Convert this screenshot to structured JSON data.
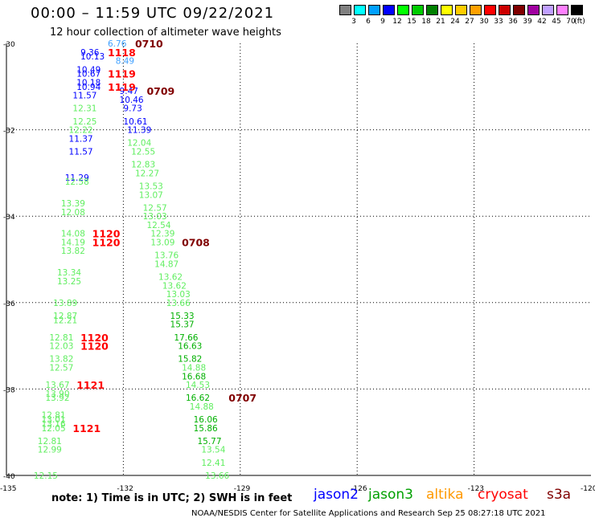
{
  "title": "00:00 – 11:59 UTC 09/22/2021",
  "subtitle": "12 hour collection of altimeter wave heights",
  "legend": {
    "colors": [
      "#808080",
      "#00ffff",
      "#00a0ff",
      "#0000ff",
      "#00ff00",
      "#00cc00",
      "#008000",
      "#ffff00",
      "#ffcc00",
      "#ffa000",
      "#ff0000",
      "#cc0000",
      "#800000",
      "#a000a0",
      "#c0a0ff",
      "#ff80ff",
      "#000000"
    ],
    "labels": [
      "3",
      "6",
      "9",
      "12",
      "15",
      "18",
      "21",
      "24",
      "27",
      "30",
      "33",
      "36",
      "39",
      "42",
      "45",
      "70",
      "(ft)"
    ]
  },
  "axes": {
    "lat_labels": [
      "-30",
      "-32",
      "-34",
      "-36",
      "-38",
      "-40"
    ],
    "lon_labels": [
      "-135",
      "-132",
      "-129",
      "-126",
      "-123",
      "-120"
    ]
  },
  "note": "note: 1) Time is in UTC; 2) SWH is in feet",
  "missions": [
    {
      "name": "jason2",
      "color": "#0000ff"
    },
    {
      "name": "jason3",
      "color": "#00a000"
    },
    {
      "name": "altika",
      "color": "#ff9900"
    },
    {
      "name": "cryosat",
      "color": "#ff0000"
    },
    {
      "name": "s3a",
      "color": "#800000"
    }
  ],
  "credit": "NOAA/NESDIS Center for Satellite Applications and Research    Sep 25 08:27:18 UTC 2021",
  "time_labels": [
    {
      "text": "0710",
      "color": "#800000",
      "lon": -131.7,
      "lat": -30.0
    },
    {
      "text": "0709",
      "color": "#800000",
      "lon": -131.4,
      "lat": -31.1
    },
    {
      "text": "0708",
      "color": "#800000",
      "lon": -130.5,
      "lat": -34.6
    },
    {
      "text": "0707",
      "color": "#800000",
      "lon": -129.3,
      "lat": -38.2
    },
    {
      "text": "1118",
      "color": "#ff0000",
      "lon": -132.4,
      "lat": -30.2
    },
    {
      "text": "1119",
      "color": "#ff0000",
      "lon": -132.4,
      "lat": -30.7
    },
    {
      "text": "1119",
      "color": "#ff0000",
      "lon": -132.4,
      "lat": -31.0
    },
    {
      "text": "1120",
      "color": "#ff0000",
      "lon": -132.8,
      "lat": -34.4
    },
    {
      "text": "1120",
      "color": "#ff0000",
      "lon": -132.8,
      "lat": -34.6
    },
    {
      "text": "1120",
      "color": "#ff0000",
      "lon": -133.1,
      "lat": -36.8
    },
    {
      "text": "1120",
      "color": "#ff0000",
      "lon": -133.1,
      "lat": -37.0
    },
    {
      "text": "1121",
      "color": "#ff0000",
      "lon": -133.2,
      "lat": -37.9
    },
    {
      "text": "1121",
      "color": "#ff0000",
      "lon": -133.3,
      "lat": -38.9
    }
  ],
  "points": [
    {
      "text": "6.76",
      "color": "#40a0ff",
      "lon": -132.4,
      "lat": -30.0
    },
    {
      "text": "9.36",
      "color": "#0000ff",
      "lon": -133.1,
      "lat": -30.2
    },
    {
      "text": "10.13",
      "color": "#0000ff",
      "lon": -133.1,
      "lat": -30.3
    },
    {
      "text": "8.49",
      "color": "#40a0ff",
      "lon": -132.2,
      "lat": -30.4
    },
    {
      "text": "10.49",
      "color": "#0000ff",
      "lon": -133.2,
      "lat": -30.6
    },
    {
      "text": "10.67",
      "color": "#0000ff",
      "lon": -133.2,
      "lat": -30.7
    },
    {
      "text": "10.18",
      "color": "#0000ff",
      "lon": -133.2,
      "lat": -30.9
    },
    {
      "text": "10.94",
      "color": "#0000ff",
      "lon": -133.2,
      "lat": -31.0
    },
    {
      "text": "9.47",
      "color": "#0000ff",
      "lon": -132.1,
      "lat": -31.1
    },
    {
      "text": "11.57",
      "color": "#0000ff",
      "lon": -133.3,
      "lat": -31.2
    },
    {
      "text": "10.46",
      "color": "#0000ff",
      "lon": -132.1,
      "lat": -31.3
    },
    {
      "text": "12.31",
      "color": "#60ee60",
      "lon": -133.3,
      "lat": -31.5
    },
    {
      "text": "9.73",
      "color": "#0000ff",
      "lon": -132.0,
      "lat": -31.5
    },
    {
      "text": "12.25",
      "color": "#60ee60",
      "lon": -133.3,
      "lat": -31.8
    },
    {
      "text": "10.61",
      "color": "#0000ff",
      "lon": -132.0,
      "lat": -31.8
    },
    {
      "text": "12.22",
      "color": "#60ee60",
      "lon": -133.4,
      "lat": -32.0
    },
    {
      "text": "11.39",
      "color": "#0000ff",
      "lon": -131.9,
      "lat": -32.0
    },
    {
      "text": "11.37",
      "color": "#0000ff",
      "lon": -133.4,
      "lat": -32.2
    },
    {
      "text": "12.04",
      "color": "#60ee60",
      "lon": -131.9,
      "lat": -32.3
    },
    {
      "text": "11.57",
      "color": "#0000ff",
      "lon": -133.4,
      "lat": -32.5
    },
    {
      "text": "12.55",
      "color": "#60ee60",
      "lon": -131.8,
      "lat": -32.5
    },
    {
      "text": "12.83",
      "color": "#60ee60",
      "lon": -131.8,
      "lat": -32.8
    },
    {
      "text": "12.27",
      "color": "#60ee60",
      "lon": -131.7,
      "lat": -33.0
    },
    {
      "text": "11.29",
      "color": "#0000ff",
      "lon": -133.5,
      "lat": -33.1
    },
    {
      "text": "12.58",
      "color": "#60ee60",
      "lon": -133.5,
      "lat": -33.2
    },
    {
      "text": "13.53",
      "color": "#60ee60",
      "lon": -131.6,
      "lat": -33.3
    },
    {
      "text": "13.07",
      "color": "#60ee60",
      "lon": -131.6,
      "lat": -33.5
    },
    {
      "text": "13.39",
      "color": "#60ee60",
      "lon": -133.6,
      "lat": -33.7
    },
    {
      "text": "12.57",
      "color": "#60ee60",
      "lon": -131.5,
      "lat": -33.8
    },
    {
      "text": "12.08",
      "color": "#60ee60",
      "lon": -133.6,
      "lat": -33.9
    },
    {
      "text": "13.03",
      "color": "#60ee60",
      "lon": -131.5,
      "lat": -34.0
    },
    {
      "text": "12.54",
      "color": "#60ee60",
      "lon": -131.4,
      "lat": -34.2
    },
    {
      "text": "14.08",
      "color": "#60ee60",
      "lon": -133.6,
      "lat": -34.4
    },
    {
      "text": "12.39",
      "color": "#60ee60",
      "lon": -131.3,
      "lat": -34.4
    },
    {
      "text": "14.19",
      "color": "#60ee60",
      "lon": -133.6,
      "lat": -34.6
    },
    {
      "text": "13.09",
      "color": "#60ee60",
      "lon": -131.3,
      "lat": -34.6
    },
    {
      "text": "13.82",
      "color": "#60ee60",
      "lon": -133.6,
      "lat": -34.8
    },
    {
      "text": "13.76",
      "color": "#60ee60",
      "lon": -131.2,
      "lat": -34.9
    },
    {
      "text": "14.87",
      "color": "#60ee60",
      "lon": -131.2,
      "lat": -35.1
    },
    {
      "text": "13.34",
      "color": "#60ee60",
      "lon": -133.7,
      "lat": -35.3
    },
    {
      "text": "13.62",
      "color": "#60ee60",
      "lon": -131.1,
      "lat": -35.4
    },
    {
      "text": "13.25",
      "color": "#60ee60",
      "lon": -133.7,
      "lat": -35.5
    },
    {
      "text": "13.62",
      "color": "#60ee60",
      "lon": -131.0,
      "lat": -35.6
    },
    {
      "text": "13.03",
      "color": "#60ee60",
      "lon": -130.9,
      "lat": -35.8
    },
    {
      "text": "13.89",
      "color": "#60ee60",
      "lon": -133.8,
      "lat": -36.0
    },
    {
      "text": "13.66",
      "color": "#60ee60",
      "lon": -130.9,
      "lat": -36.0
    },
    {
      "text": "12.87",
      "color": "#60ee60",
      "lon": -133.8,
      "lat": -36.3
    },
    {
      "text": "15.33",
      "color": "#00b000",
      "lon": -130.8,
      "lat": -36.3
    },
    {
      "text": "12.21",
      "color": "#60ee60",
      "lon": -133.8,
      "lat": -36.4
    },
    {
      "text": "15.37",
      "color": "#00b000",
      "lon": -130.8,
      "lat": -36.5
    },
    {
      "text": "12.81",
      "color": "#60ee60",
      "lon": -133.9,
      "lat": -36.8
    },
    {
      "text": "17.66",
      "color": "#00b000",
      "lon": -130.7,
      "lat": -36.8
    },
    {
      "text": "12.03",
      "color": "#60ee60",
      "lon": -133.9,
      "lat": -37.0
    },
    {
      "text": "16.63",
      "color": "#00b000",
      "lon": -130.6,
      "lat": -37.0
    },
    {
      "text": "13.82",
      "color": "#60ee60",
      "lon": -133.9,
      "lat": -37.3
    },
    {
      "text": "15.82",
      "color": "#00b000",
      "lon": -130.6,
      "lat": -37.3
    },
    {
      "text": "12.57",
      "color": "#60ee60",
      "lon": -133.9,
      "lat": -37.5
    },
    {
      "text": "14.88",
      "color": "#60ee60",
      "lon": -130.5,
      "lat": -37.5
    },
    {
      "text": "16.68",
      "color": "#00b000",
      "lon": -130.5,
      "lat": -37.7
    },
    {
      "text": "13.67",
      "color": "#60ee60",
      "lon": -134.0,
      "lat": -37.9
    },
    {
      "text": "14.53",
      "color": "#60ee60",
      "lon": -130.4,
      "lat": -37.9
    },
    {
      "text": "13.90",
      "color": "#60ee60",
      "lon": -134.0,
      "lat": -38.1
    },
    {
      "text": "13.92",
      "color": "#60ee60",
      "lon": -134.0,
      "lat": -38.2
    },
    {
      "text": "16.62",
      "color": "#00b000",
      "lon": -130.4,
      "lat": -38.2
    },
    {
      "text": "14.88",
      "color": "#60ee60",
      "lon": -130.3,
      "lat": -38.4
    },
    {
      "text": "12.81",
      "color": "#60ee60",
      "lon": -134.1,
      "lat": -38.6
    },
    {
      "text": "13.01",
      "color": "#60ee60",
      "lon": -134.1,
      "lat": -38.7
    },
    {
      "text": "16.06",
      "color": "#00b000",
      "lon": -130.2,
      "lat": -38.7
    },
    {
      "text": "13.16",
      "color": "#60ee60",
      "lon": -134.1,
      "lat": -38.8
    },
    {
      "text": "12.05",
      "color": "#60ee60",
      "lon": -134.1,
      "lat": -38.9
    },
    {
      "text": "15.86",
      "color": "#00b000",
      "lon": -130.2,
      "lat": -38.9
    },
    {
      "text": "12.81",
      "color": "#60ee60",
      "lon": -134.2,
      "lat": -39.2
    },
    {
      "text": "15.77",
      "color": "#00b000",
      "lon": -130.1,
      "lat": -39.2
    },
    {
      "text": "12.99",
      "color": "#60ee60",
      "lon": -134.2,
      "lat": -39.4
    },
    {
      "text": "13.54",
      "color": "#60ee60",
      "lon": -130.0,
      "lat": -39.4
    },
    {
      "text": "12.41",
      "color": "#60ee60",
      "lon": -130.0,
      "lat": -39.7
    },
    {
      "text": "12.15",
      "color": "#60ee60",
      "lon": -134.3,
      "lat": -40.0
    },
    {
      "text": "13.66",
      "color": "#60ee60",
      "lon": -129.9,
      "lat": -40.0
    }
  ]
}
